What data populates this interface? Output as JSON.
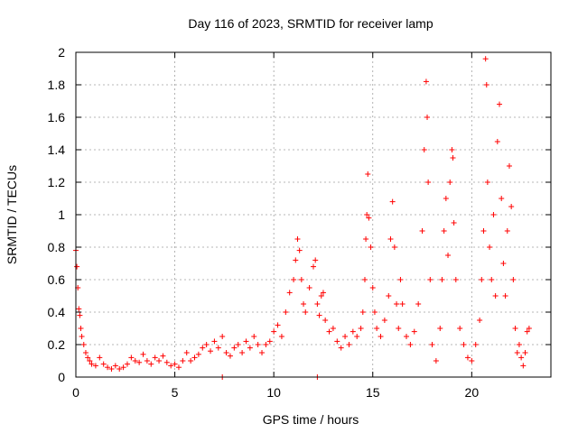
{
  "chart_data": {
    "type": "scatter",
    "title": "Day 116 of 2023, SRMTID for receiver lamp",
    "xlabel": "GPS time / hours",
    "ylabel": "SRMTID / TECUs",
    "xlim": [
      0,
      24
    ],
    "ylim": [
      0,
      2
    ],
    "xticks": [
      0,
      5,
      10,
      15,
      20
    ],
    "yticks": [
      0,
      0.2,
      0.4,
      0.6,
      0.8,
      1,
      1.2,
      1.4,
      1.6,
      1.8,
      2
    ],
    "grid": true,
    "marker": "plus",
    "color": "#ff0000",
    "series": [
      {
        "name": "SRMTID",
        "points": [
          [
            0.0,
            0.78
          ],
          [
            0.05,
            0.68
          ],
          [
            0.1,
            0.55
          ],
          [
            0.15,
            0.42
          ],
          [
            0.2,
            0.38
          ],
          [
            0.25,
            0.3
          ],
          [
            0.3,
            0.25
          ],
          [
            0.4,
            0.2
          ],
          [
            0.5,
            0.15
          ],
          [
            0.6,
            0.12
          ],
          [
            0.7,
            0.1
          ],
          [
            0.8,
            0.08
          ],
          [
            1.0,
            0.07
          ],
          [
            1.2,
            0.12
          ],
          [
            1.4,
            0.08
          ],
          [
            1.6,
            0.06
          ],
          [
            1.8,
            0.05
          ],
          [
            2.0,
            0.07
          ],
          [
            2.2,
            0.05
          ],
          [
            2.4,
            0.06
          ],
          [
            2.6,
            0.08
          ],
          [
            2.8,
            0.12
          ],
          [
            3.0,
            0.1
          ],
          [
            3.2,
            0.09
          ],
          [
            3.4,
            0.14
          ],
          [
            3.6,
            0.1
          ],
          [
            3.8,
            0.08
          ],
          [
            4.0,
            0.12
          ],
          [
            4.2,
            0.1
          ],
          [
            4.4,
            0.13
          ],
          [
            4.6,
            0.09
          ],
          [
            4.8,
            0.07
          ],
          [
            5.0,
            0.08
          ],
          [
            5.2,
            0.06
          ],
          [
            5.4,
            0.1
          ],
          [
            5.6,
            0.15
          ],
          [
            5.8,
            0.1
          ],
          [
            6.0,
            0.12
          ],
          [
            6.2,
            0.14
          ],
          [
            6.4,
            0.18
          ],
          [
            6.6,
            0.2
          ],
          [
            6.8,
            0.16
          ],
          [
            7.0,
            0.22
          ],
          [
            7.2,
            0.18
          ],
          [
            7.4,
            0.25
          ],
          [
            7.6,
            0.15
          ],
          [
            7.8,
            0.13
          ],
          [
            8.0,
            0.18
          ],
          [
            8.2,
            0.2
          ],
          [
            8.4,
            0.15
          ],
          [
            8.6,
            0.22
          ],
          [
            8.8,
            0.18
          ],
          [
            9.0,
            0.25
          ],
          [
            9.2,
            0.2
          ],
          [
            9.4,
            0.15
          ],
          [
            9.6,
            0.2
          ],
          [
            9.8,
            0.22
          ],
          [
            10.0,
            0.28
          ],
          [
            10.2,
            0.32
          ],
          [
            10.4,
            0.25
          ],
          [
            10.6,
            0.4
          ],
          [
            10.8,
            0.52
          ],
          [
            11.0,
            0.6
          ],
          [
            11.1,
            0.72
          ],
          [
            11.2,
            0.85
          ],
          [
            11.3,
            0.78
          ],
          [
            11.4,
            0.6
          ],
          [
            11.5,
            0.45
          ],
          [
            11.6,
            0.4
          ],
          [
            11.8,
            0.55
          ],
          [
            12.0,
            0.68
          ],
          [
            12.1,
            0.72
          ],
          [
            12.2,
            0.45
          ],
          [
            12.3,
            0.38
          ],
          [
            12.4,
            0.5
          ],
          [
            12.5,
            0.52
          ],
          [
            12.6,
            0.35
          ],
          [
            12.8,
            0.28
          ],
          [
            13.0,
            0.3
          ],
          [
            13.2,
            0.22
          ],
          [
            13.4,
            0.18
          ],
          [
            13.6,
            0.25
          ],
          [
            13.8,
            0.2
          ],
          [
            14.0,
            0.28
          ],
          [
            14.2,
            0.25
          ],
          [
            14.4,
            0.3
          ],
          [
            14.5,
            0.4
          ],
          [
            14.6,
            0.6
          ],
          [
            14.65,
            0.85
          ],
          [
            14.7,
            1.0
          ],
          [
            14.75,
            1.25
          ],
          [
            14.8,
            0.98
          ],
          [
            14.9,
            0.8
          ],
          [
            15.0,
            0.55
          ],
          [
            15.1,
            0.4
          ],
          [
            15.2,
            0.3
          ],
          [
            15.4,
            0.25
          ],
          [
            15.6,
            0.35
          ],
          [
            15.8,
            0.5
          ],
          [
            15.9,
            0.85
          ],
          [
            16.0,
            1.08
          ],
          [
            16.1,
            0.8
          ],
          [
            16.2,
            0.45
          ],
          [
            16.3,
            0.3
          ],
          [
            16.4,
            0.6
          ],
          [
            16.5,
            0.45
          ],
          [
            16.7,
            0.25
          ],
          [
            16.9,
            0.2
          ],
          [
            17.1,
            0.28
          ],
          [
            17.3,
            0.45
          ],
          [
            17.5,
            0.9
          ],
          [
            17.6,
            1.4
          ],
          [
            17.7,
            1.82
          ],
          [
            17.75,
            1.6
          ],
          [
            17.8,
            1.2
          ],
          [
            17.9,
            0.6
          ],
          [
            18.0,
            0.2
          ],
          [
            18.2,
            0.1
          ],
          [
            18.4,
            0.3
          ],
          [
            18.5,
            0.6
          ],
          [
            18.6,
            0.9
          ],
          [
            18.7,
            1.1
          ],
          [
            18.8,
            0.75
          ],
          [
            18.9,
            1.2
          ],
          [
            19.0,
            1.4
          ],
          [
            19.05,
            1.35
          ],
          [
            19.1,
            0.95
          ],
          [
            19.2,
            0.6
          ],
          [
            19.4,
            0.3
          ],
          [
            19.6,
            0.2
          ],
          [
            19.8,
            0.12
          ],
          [
            20.0,
            0.1
          ],
          [
            20.2,
            0.2
          ],
          [
            20.4,
            0.35
          ],
          [
            20.5,
            0.6
          ],
          [
            20.6,
            0.9
          ],
          [
            20.7,
            1.96
          ],
          [
            20.75,
            1.8
          ],
          [
            20.8,
            1.2
          ],
          [
            20.9,
            0.8
          ],
          [
            21.0,
            0.6
          ],
          [
            21.1,
            1.0
          ],
          [
            21.2,
            0.5
          ],
          [
            21.3,
            1.45
          ],
          [
            21.4,
            1.68
          ],
          [
            21.5,
            1.1
          ],
          [
            21.6,
            0.7
          ],
          [
            21.7,
            0.5
          ],
          [
            21.8,
            0.9
          ],
          [
            21.9,
            1.3
          ],
          [
            22.0,
            1.05
          ],
          [
            22.1,
            0.6
          ],
          [
            22.2,
            0.3
          ],
          [
            22.3,
            0.15
          ],
          [
            22.4,
            0.2
          ],
          [
            22.5,
            0.12
          ],
          [
            22.6,
            0.07
          ],
          [
            22.7,
            0.15
          ],
          [
            22.8,
            0.28
          ],
          [
            22.9,
            0.3
          ],
          [
            7.4,
            0.0
          ],
          [
            12.2,
            0.0
          ]
        ]
      }
    ]
  }
}
